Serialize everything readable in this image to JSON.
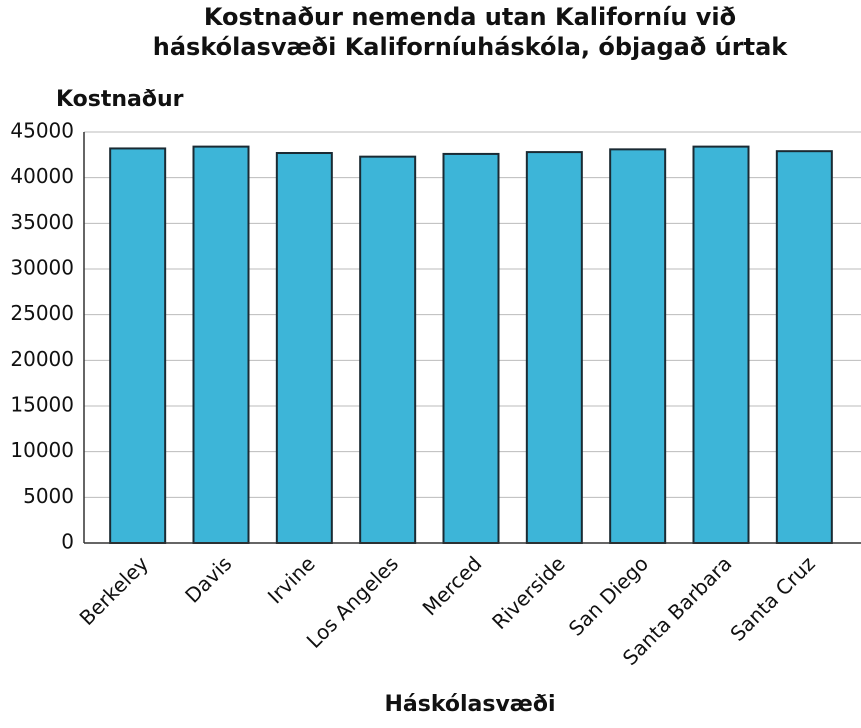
{
  "chart_data": {
    "type": "bar",
    "title": [
      "Kostnaður nemenda utan Kaliforníu við",
      "háskólasvæði Kaliforníuháskóla, óbjagað úrtak"
    ],
    "y_label": "Kostnaður",
    "x_label": "Háskólasvæði",
    "categories": [
      "Berkeley",
      "Davis",
      "Irvine",
      "Los Angeles",
      "Merced",
      "Riverside",
      "San Diego",
      "Santa Barbara",
      "Santa Cruz"
    ],
    "values": [
      43200,
      43400,
      42700,
      42300,
      42600,
      42800,
      43100,
      43400,
      42900
    ],
    "color": "#3db5d8",
    "ylim": [
      0,
      45000
    ],
    "yticks": [
      0,
      5000,
      10000,
      15000,
      20000,
      25000,
      30000,
      35000,
      40000,
      45000
    ],
    "grid": true
  }
}
